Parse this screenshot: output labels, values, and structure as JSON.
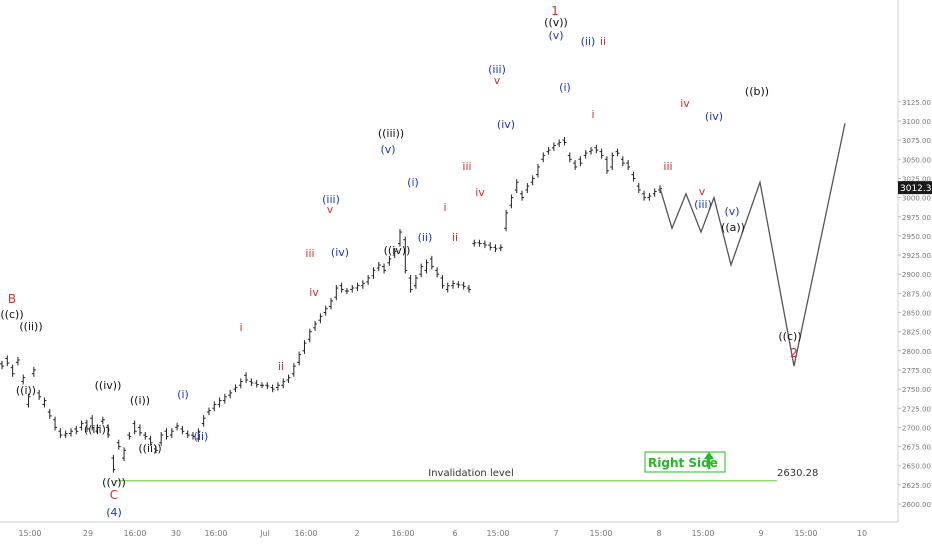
{
  "chart_data": {
    "type": "line",
    "title": "",
    "y_axis": {
      "range": [
        2585,
        3125
      ],
      "ticks": [
        2600,
        2625,
        2650,
        2675,
        2700,
        2725,
        2750,
        2775,
        2800,
        2825,
        2850,
        2875,
        2900,
        2925,
        2950,
        2975,
        3000,
        3025,
        3050,
        3075,
        3100,
        3125
      ],
      "tick_labels": [
        "2600.00",
        "2625.00",
        "2650.00",
        "2675.00",
        "2700.00",
        "2725.00",
        "2750.00",
        "2775.00",
        "2800.00",
        "2825.00",
        "2850.00",
        "2875.00",
        "2900.00",
        "2925.00",
        "2950.00",
        "2975.00",
        "3000.00",
        "3025.00",
        "3050.00",
        "3075.00",
        "3100.00",
        "3125.00"
      ]
    },
    "x_axis": {
      "tick_labels": [
        "15:00",
        "29",
        "16:00",
        "30",
        "16:00",
        "Jul",
        "16:00",
        "2",
        "16:00",
        "6",
        "15:00",
        "7",
        "15:00",
        "8",
        "15:00",
        "9",
        "15:00",
        "10"
      ]
    },
    "last_price": {
      "value": 3012.35,
      "label": "3012.35"
    },
    "invalidation": {
      "value": 2630.28,
      "label": "2630.28",
      "text": "Invalidation level"
    },
    "badge": {
      "text": "Right Side",
      "arrow": "up-arrow-icon"
    },
    "colors": {
      "wave_red": "#d32f2f",
      "wave_blue": "#1a35c8",
      "wave_black": "#111111",
      "invalid_line": "#66cc33",
      "badge_green": "#22bb22",
      "projection": "#555555"
    },
    "price_path": [
      [
        2783,
        2780
      ],
      [
        2790,
        2784
      ],
      [
        2778,
        2770
      ],
      [
        2785,
        2788
      ],
      [
        2760,
        2765
      ],
      [
        2730,
        2740
      ],
      [
        2770,
        2775
      ],
      [
        2745,
        2740
      ],
      [
        2730,
        2735
      ],
      [
        2720,
        2715
      ],
      [
        2710,
        2700
      ],
      [
        2695,
        2690
      ],
      [
        2690,
        2692
      ],
      [
        2692,
        2695
      ],
      [
        2698,
        2695
      ],
      [
        2700,
        2705
      ],
      [
        2706,
        2698
      ],
      [
        2712,
        2700
      ],
      [
        2695,
        2700
      ],
      [
        2708,
        2710
      ],
      [
        2700,
        2690
      ],
      [
        2660,
        2645
      ],
      [
        2680,
        2675
      ],
      [
        2660,
        2670
      ],
      [
        2690,
        2688
      ],
      [
        2705,
        2695
      ],
      [
        2700,
        2693
      ],
      [
        2690,
        2688
      ],
      [
        2685,
        2680
      ],
      [
        2672,
        2670
      ],
      [
        2680,
        2690
      ],
      [
        2695,
        2688
      ],
      [
        2690,
        2695
      ],
      [
        2700,
        2702
      ],
      [
        2698,
        2695
      ],
      [
        2692,
        2690
      ],
      [
        2690,
        2688
      ],
      [
        2685,
        2695
      ],
      [
        2705,
        2712
      ],
      [
        2720,
        2722
      ],
      [
        2725,
        2730
      ],
      [
        2730,
        2735
      ],
      [
        2735,
        2740
      ],
      [
        2742,
        2745
      ],
      [
        2750,
        2752
      ],
      [
        2755,
        2760
      ],
      [
        2768,
        2762
      ],
      [
        2760,
        2758
      ],
      [
        2758,
        2756
      ],
      [
        2755,
        2755
      ],
      [
        2755,
        2754
      ],
      [
        2752,
        2750
      ],
      [
        2752,
        2755
      ],
      [
        2755,
        2760
      ],
      [
        2762,
        2765
      ],
      [
        2770,
        2780
      ],
      [
        2785,
        2795
      ],
      [
        2800,
        2810
      ],
      [
        2815,
        2825
      ],
      [
        2830,
        2835
      ],
      [
        2840,
        2845
      ],
      [
        2850,
        2855
      ],
      [
        2858,
        2865
      ],
      [
        2870,
        2882
      ],
      [
        2885,
        2880
      ],
      [
        2878,
        2878
      ],
      [
        2880,
        2882
      ],
      [
        2882,
        2885
      ],
      [
        2885,
        2888
      ],
      [
        2890,
        2895
      ],
      [
        2898,
        2905
      ],
      [
        2908,
        2912
      ],
      [
        2910,
        2905
      ],
      [
        2915,
        2920
      ],
      [
        2925,
        2930
      ],
      [
        2940,
        2955
      ],
      [
        2945,
        2905
      ],
      [
        2895,
        2880
      ],
      [
        2885,
        2895
      ],
      [
        2900,
        2910
      ],
      [
        2905,
        2915
      ],
      [
        2920,
        2910
      ],
      [
        2905,
        2900
      ],
      [
        2895,
        2885
      ],
      [
        2880,
        2885
      ],
      [
        2885,
        2888
      ],
      [
        2887,
        2886
      ],
      [
        2886,
        2884
      ],
      [
        2882,
        2880
      ],
      [
        2940,
        2941
      ],
      [
        2941,
        2940
      ],
      [
        2940,
        2938
      ],
      [
        2938,
        2935
      ],
      [
        2935,
        2933
      ],
      [
        2934,
        2935
      ],
      [
        2960,
        2980
      ],
      [
        2990,
        3000
      ],
      [
        3010,
        3020
      ],
      [
        3005,
        3000
      ],
      [
        3010,
        3015
      ],
      [
        3020,
        3025
      ],
      [
        3030,
        3040
      ],
      [
        3050,
        3055
      ],
      [
        3060,
        3062
      ],
      [
        3065,
        3068
      ],
      [
        3070,
        3072
      ],
      [
        3075,
        3072
      ],
      [
        3055,
        3050
      ],
      [
        3045,
        3040
      ],
      [
        3050,
        3045
      ],
      [
        3055,
        3058
      ],
      [
        3060,
        3062
      ],
      [
        3065,
        3062
      ],
      [
        3060,
        3055
      ],
      [
        3050,
        3035
      ],
      [
        3040,
        3055
      ],
      [
        3060,
        3058
      ],
      [
        3050,
        3045
      ],
      [
        3045,
        3040
      ],
      [
        3030,
        3025
      ],
      [
        3015,
        3010
      ],
      [
        3005,
        3000
      ],
      [
        3000,
        3002
      ],
      [
        3005,
        3008
      ],
      [
        3010,
        3012
      ]
    ],
    "projection_path": [
      [
        3012.35
      ],
      [
        2960
      ],
      [
        3005
      ],
      [
        2955
      ],
      [
        3000
      ],
      [
        2912
      ],
      [
        3020
      ],
      [
        2780
      ],
      [
        3097
      ]
    ]
  },
  "labels": [
    {
      "text": "B",
      "c": "red"
    },
    {
      "text": "((c))",
      "c": "black"
    },
    {
      "text": "((ii))",
      "c": "black"
    },
    {
      "text": "((i))",
      "c": "black"
    },
    {
      "text": "((iv))",
      "c": "black"
    },
    {
      "text": "((iii))",
      "c": "black"
    },
    {
      "text": "((v))",
      "c": "black"
    },
    {
      "text": "C",
      "c": "red"
    },
    {
      "text": "(4)",
      "c": "blue"
    },
    {
      "text": "((i))",
      "c": "black"
    },
    {
      "text": "((ii))",
      "c": "black"
    },
    {
      "text": "(i)",
      "c": "blue"
    },
    {
      "text": "(ii)",
      "c": "blue"
    },
    {
      "text": "i",
      "c": "red"
    },
    {
      "text": "ii",
      "c": "red"
    },
    {
      "text": "iii",
      "c": "red"
    },
    {
      "text": "iv",
      "c": "red"
    },
    {
      "text": "v",
      "c": "red"
    },
    {
      "text": "(iii)",
      "c": "blue"
    },
    {
      "text": "(iv)",
      "c": "blue"
    },
    {
      "text": "((iii))",
      "c": "black"
    },
    {
      "text": "(v)",
      "c": "blue"
    },
    {
      "text": "((iv))",
      "c": "black"
    },
    {
      "text": "(i)",
      "c": "blue"
    },
    {
      "text": "(ii)",
      "c": "blue"
    },
    {
      "text": "i",
      "c": "red"
    },
    {
      "text": "ii",
      "c": "red"
    },
    {
      "text": "iii",
      "c": "red"
    },
    {
      "text": "iv",
      "c": "red"
    },
    {
      "text": "(iii)",
      "c": "blue"
    },
    {
      "text": "v",
      "c": "red"
    },
    {
      "text": "(iv)",
      "c": "blue"
    },
    {
      "text": "1",
      "c": "red"
    },
    {
      "text": "((v))",
      "c": "black"
    },
    {
      "text": "(v)",
      "c": "blue"
    },
    {
      "text": "(i)",
      "c": "blue"
    },
    {
      "text": "(ii)",
      "c": "blue"
    },
    {
      "text": "ii",
      "c": "red"
    },
    {
      "text": "i",
      "c": "red"
    },
    {
      "text": "iii",
      "c": "red"
    },
    {
      "text": "iv",
      "c": "red"
    },
    {
      "text": "v",
      "c": "red"
    },
    {
      "text": "(iii)",
      "c": "blue"
    },
    {
      "text": "(iv)",
      "c": "blue"
    },
    {
      "text": "(v)",
      "c": "blue"
    },
    {
      "text": "((a))",
      "c": "black"
    },
    {
      "text": "((b))",
      "c": "black"
    },
    {
      "text": "((c))",
      "c": "black"
    },
    {
      "text": "2",
      "c": "red"
    }
  ]
}
